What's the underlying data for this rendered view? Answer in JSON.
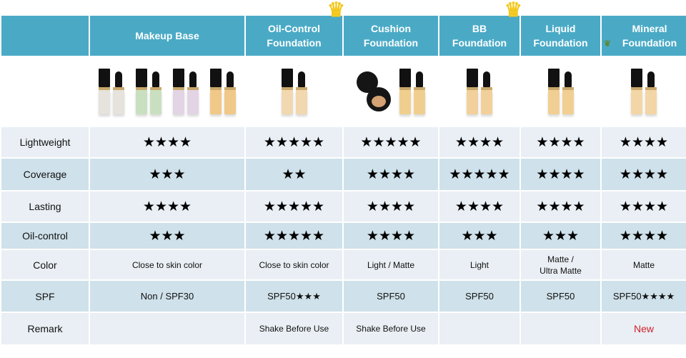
{
  "columns": [
    {
      "name": "Makeup Base",
      "crown": false,
      "leaf": false,
      "bottles": [
        "#e6e2dc",
        "#c9e0c0",
        "#e2d4e4",
        "#f0c888"
      ],
      "compact": false
    },
    {
      "name": "Oil-Control Foundation",
      "crown": true,
      "leaf": false,
      "bottles": [
        "#f1d8b0"
      ],
      "compact": false
    },
    {
      "name": "Cushion Foundation",
      "crown": false,
      "leaf": false,
      "bottles": [
        "#f0cf8e"
      ],
      "compact": true
    },
    {
      "name": "BB Foundation",
      "crown": true,
      "leaf": false,
      "bottles": [
        "#f2d09c"
      ],
      "compact": false
    },
    {
      "name": "Liquid Foundation",
      "crown": false,
      "leaf": false,
      "bottles": [
        "#f1cf92"
      ],
      "compact": false
    },
    {
      "name": "Mineral Foundation",
      "crown": false,
      "leaf": true,
      "bottles": [
        "#f2d6a6"
      ],
      "compact": false
    }
  ],
  "rows": [
    {
      "label": "Lightweight",
      "type": "stars",
      "values": [
        "★★★★",
        "★★★★★",
        "★★★★★",
        "★★★★",
        "★★★★",
        "★★★★"
      ],
      "ratings": [
        4,
        5,
        5,
        4,
        4,
        4
      ]
    },
    {
      "label": "Coverage",
      "type": "stars",
      "values": [
        "★★★",
        "★★",
        "★★★★",
        "★★★★★",
        "★★★★",
        "★★★★"
      ],
      "ratings": [
        3,
        2,
        4,
        5,
        4,
        4
      ]
    },
    {
      "label": "Lasting",
      "type": "stars",
      "values": [
        "★★★★",
        "★★★★★",
        "★★★★",
        "★★★★",
        "★★★★",
        "★★★★"
      ],
      "ratings": [
        4,
        5,
        4,
        4,
        4,
        4
      ]
    },
    {
      "label": "Oil-control",
      "type": "stars",
      "values": [
        "★★★",
        "★★★★★",
        "★★★★",
        "★★★",
        "★★★",
        "★★★★"
      ],
      "ratings": [
        3,
        5,
        4,
        3,
        3,
        4
      ]
    },
    {
      "label": "Color",
      "type": "txt",
      "values": [
        "Close to skin color",
        "Close to skin color",
        "Light / Matte",
        "Light",
        "Matte /\nUltra Matte",
        "Matte"
      ]
    },
    {
      "label": "SPF",
      "type": "spf",
      "values": [
        "Non / SPF30",
        "SPF50★★★",
        "SPF50",
        "SPF50",
        "SPF50",
        "SPF50★★★★"
      ]
    },
    {
      "label": "Remark",
      "type": "txt",
      "values": [
        "",
        "Shake Before Use",
        "Shake Before Use",
        "",
        "",
        "New"
      ]
    }
  ],
  "colors": {
    "header": "#4aaac6",
    "row_light": "#e9eff4",
    "row_dark": "#cfe1ea",
    "new_text": "#d0202a",
    "crown": "#f2c81c"
  }
}
